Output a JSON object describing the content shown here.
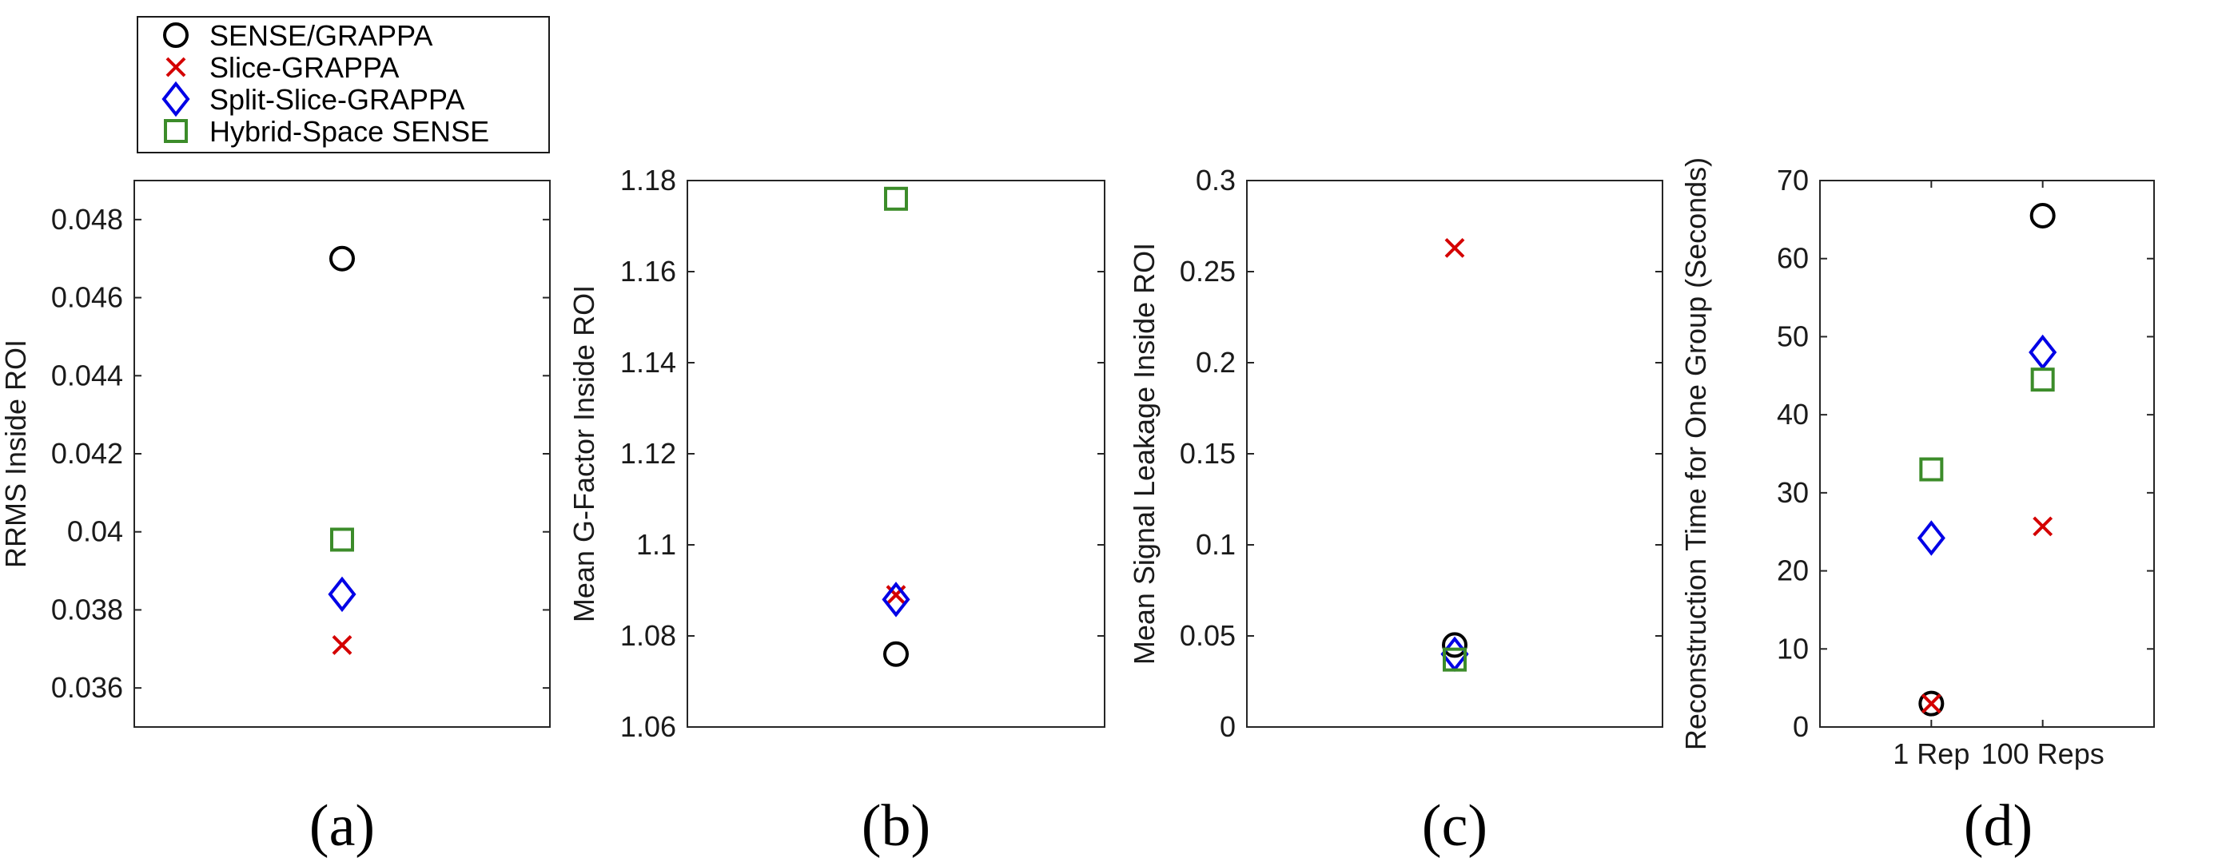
{
  "legend": {
    "entries": [
      {
        "label": "SENSE/GRAPPA",
        "marker": "circle",
        "color": "#000000"
      },
      {
        "label": "Slice-GRAPPA",
        "marker": "x",
        "color": "#d40000"
      },
      {
        "label": "Split-Slice-GRAPPA",
        "marker": "diamond",
        "color": "#0000e6"
      },
      {
        "label": "Hybrid-Space SENSE",
        "marker": "square",
        "color": "#3c8c2a"
      }
    ]
  },
  "chart_data": [
    {
      "type": "scatter",
      "panel_label": "(a)",
      "ylabel": "RRMS Inside ROI",
      "ylim": [
        0.035,
        0.049
      ],
      "yticks": [
        0.036,
        0.038,
        0.04,
        0.042,
        0.044,
        0.046,
        0.048
      ],
      "ytick_labels": [
        "0.036",
        "0.038",
        "0.04",
        "0.042",
        "0.044",
        "0.046",
        "0.048"
      ],
      "xlim": [
        0,
        2
      ],
      "xticks": [],
      "xtick_labels": [],
      "series": [
        {
          "name": "SENSE/GRAPPA",
          "points": [
            [
              1,
              0.047
            ]
          ]
        },
        {
          "name": "Slice-GRAPPA",
          "points": [
            [
              1,
              0.0371
            ]
          ]
        },
        {
          "name": "Split-Slice-GRAPPA",
          "points": [
            [
              1,
              0.0384
            ]
          ]
        },
        {
          "name": "Hybrid-Space SENSE",
          "points": [
            [
              1,
              0.0398
            ]
          ]
        }
      ]
    },
    {
      "type": "scatter",
      "panel_label": "(b)",
      "ylabel": "Mean G-Factor Inside ROI",
      "ylim": [
        1.06,
        1.18
      ],
      "yticks": [
        1.06,
        1.08,
        1.1,
        1.12,
        1.14,
        1.16,
        1.18
      ],
      "ytick_labels": [
        "1.06",
        "1.08",
        "1.1",
        "1.12",
        "1.14",
        "1.16",
        "1.18"
      ],
      "xlim": [
        0,
        2
      ],
      "xticks": [],
      "xtick_labels": [],
      "series": [
        {
          "name": "SENSE/GRAPPA",
          "points": [
            [
              1,
              1.076
            ]
          ]
        },
        {
          "name": "Slice-GRAPPA",
          "points": [
            [
              1,
              1.089
            ]
          ]
        },
        {
          "name": "Split-Slice-GRAPPA",
          "points": [
            [
              1,
              1.088
            ]
          ]
        },
        {
          "name": "Hybrid-Space SENSE",
          "points": [
            [
              1,
              1.176
            ]
          ]
        }
      ]
    },
    {
      "type": "scatter",
      "panel_label": "(c)",
      "ylabel": "Mean Signal Leakage Inside ROI",
      "ylim": [
        0,
        0.3
      ],
      "yticks": [
        0,
        0.05,
        0.1,
        0.15,
        0.2,
        0.25,
        0.3
      ],
      "ytick_labels": [
        "0",
        "0.05",
        "0.1",
        "0.15",
        "0.2",
        "0.25",
        "0.3"
      ],
      "xlim": [
        0,
        2
      ],
      "xticks": [],
      "xtick_labels": [],
      "series": [
        {
          "name": "SENSE/GRAPPA",
          "points": [
            [
              1,
              0.045
            ]
          ]
        },
        {
          "name": "Slice-GRAPPA",
          "points": [
            [
              1,
              0.263
            ]
          ]
        },
        {
          "name": "Split-Slice-GRAPPA",
          "points": [
            [
              1,
              0.04
            ]
          ]
        },
        {
          "name": "Hybrid-Space SENSE",
          "points": [
            [
              1,
              0.037
            ]
          ]
        }
      ]
    },
    {
      "type": "scatter",
      "panel_label": "(d)",
      "ylabel": "Reconstruction Time for One Group (Seconds)",
      "ylim": [
        0,
        70
      ],
      "yticks": [
        0,
        10,
        20,
        30,
        40,
        50,
        60,
        70
      ],
      "ytick_labels": [
        "0",
        "10",
        "20",
        "30",
        "40",
        "50",
        "60",
        "70"
      ],
      "xlim": [
        0,
        3
      ],
      "xticks": [
        1,
        2
      ],
      "xtick_labels": [
        "1 Rep",
        "100 Reps"
      ],
      "series": [
        {
          "name": "SENSE/GRAPPA",
          "points": [
            [
              1,
              3.0
            ],
            [
              2,
              65.5
            ]
          ]
        },
        {
          "name": "Slice-GRAPPA",
          "points": [
            [
              1,
              3.0
            ],
            [
              2,
              25.7
            ]
          ]
        },
        {
          "name": "Split-Slice-GRAPPA",
          "points": [
            [
              1,
              24.2
            ],
            [
              2,
              48.0
            ]
          ]
        },
        {
          "name": "Hybrid-Space SENSE",
          "points": [
            [
              1,
              33.0
            ],
            [
              2,
              44.5
            ]
          ]
        }
      ]
    }
  ]
}
